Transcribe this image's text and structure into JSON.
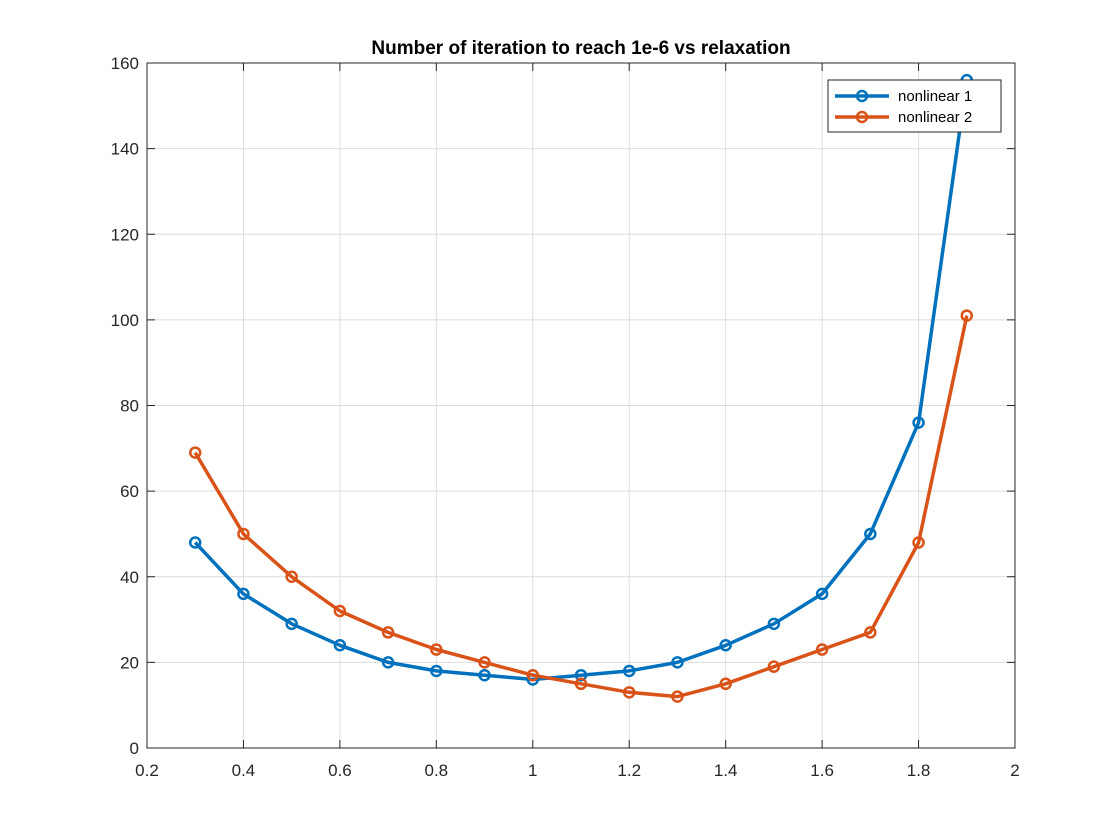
{
  "chart_data": {
    "type": "line",
    "title": "Number of iteration to reach 1e-6 vs relaxation",
    "xlabel": "",
    "ylabel": "",
    "xlim": [
      0.2,
      2
    ],
    "ylim": [
      0,
      160
    ],
    "xticks": [
      "0.2",
      "0.4",
      "0.6",
      "0.8",
      "1",
      "1.2",
      "1.4",
      "1.6",
      "1.8",
      "2"
    ],
    "yticks": [
      "0",
      "20",
      "40",
      "60",
      "80",
      "100",
      "120",
      "140",
      "160"
    ],
    "grid": true,
    "legend_position": "top-right",
    "x": [
      0.3,
      0.4,
      0.5,
      0.6,
      0.7,
      0.8,
      0.9,
      1.0,
      1.1,
      1.2,
      1.3,
      1.4,
      1.5,
      1.6,
      1.7,
      1.8,
      1.9
    ],
    "series": [
      {
        "name": "nonlinear 1",
        "color": "#0072BD",
        "marker": "o",
        "values": [
          48,
          36,
          29,
          24,
          20,
          18,
          17,
          16,
          17,
          18,
          20,
          24,
          29,
          36,
          50,
          76,
          156
        ]
      },
      {
        "name": "nonlinear 2",
        "color": "#D95319",
        "marker": "o",
        "values": [
          69,
          50,
          40,
          32,
          27,
          23,
          20,
          17,
          15,
          13,
          12,
          15,
          19,
          23,
          27,
          48,
          101
        ]
      }
    ]
  }
}
